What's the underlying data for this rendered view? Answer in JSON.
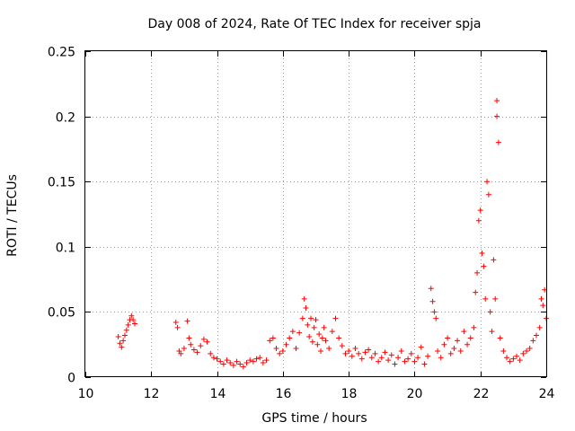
{
  "chart_data": {
    "type": "scatter",
    "title": "Day 008 of 2024, Rate Of TEC Index for receiver spja",
    "xlabel": "GPS time / hours",
    "ylabel": "ROTI / TECUs",
    "xlim": [
      10,
      24
    ],
    "ylim": [
      0,
      0.25
    ],
    "grid": true,
    "marker": "+",
    "color": "#ff0000",
    "x_ticks": [
      {
        "value": 10,
        "label": "10"
      },
      {
        "value": 12,
        "label": "12"
      },
      {
        "value": 14,
        "label": "14"
      },
      {
        "value": 16,
        "label": "16"
      },
      {
        "value": 18,
        "label": "18"
      },
      {
        "value": 20,
        "label": "20"
      },
      {
        "value": 22,
        "label": "22"
      },
      {
        "value": 24,
        "label": "24"
      }
    ],
    "y_ticks": [
      {
        "value": 0,
        "label": "0"
      },
      {
        "value": 0.05,
        "label": "0.05"
      },
      {
        "value": 0.1,
        "label": "0.1"
      },
      {
        "value": 0.15,
        "label": "0.15"
      },
      {
        "value": 0.2,
        "label": "0.2"
      },
      {
        "value": 0.25,
        "label": "0.25"
      }
    ],
    "series": [
      {
        "name": "ROTI",
        "points": [
          [
            11.0,
            0.031
          ],
          [
            11.05,
            0.026
          ],
          [
            11.1,
            0.023
          ],
          [
            11.15,
            0.028
          ],
          [
            11.2,
            0.032
          ],
          [
            11.25,
            0.036
          ],
          [
            11.3,
            0.04
          ],
          [
            11.35,
            0.044
          ],
          [
            11.4,
            0.047
          ],
          [
            11.45,
            0.044
          ],
          [
            11.5,
            0.041
          ],
          [
            12.75,
            0.042
          ],
          [
            12.8,
            0.038
          ],
          [
            12.85,
            0.02
          ],
          [
            12.9,
            0.018
          ],
          [
            13.0,
            0.022
          ],
          [
            13.1,
            0.043
          ],
          [
            13.15,
            0.03
          ],
          [
            13.2,
            0.025
          ],
          [
            13.3,
            0.021
          ],
          [
            13.4,
            0.019
          ],
          [
            13.5,
            0.024
          ],
          [
            13.6,
            0.029
          ],
          [
            13.7,
            0.027
          ],
          [
            13.8,
            0.018
          ],
          [
            13.9,
            0.015
          ],
          [
            14.0,
            0.014
          ],
          [
            14.1,
            0.012
          ],
          [
            14.2,
            0.01
          ],
          [
            14.3,
            0.013
          ],
          [
            14.4,
            0.011
          ],
          [
            14.5,
            0.009
          ],
          [
            14.6,
            0.012
          ],
          [
            14.7,
            0.01
          ],
          [
            14.8,
            0.008
          ],
          [
            14.9,
            0.011
          ],
          [
            15.0,
            0.013
          ],
          [
            15.1,
            0.012
          ],
          [
            15.2,
            0.014
          ],
          [
            15.3,
            0.015
          ],
          [
            15.4,
            0.011
          ],
          [
            15.5,
            0.013
          ],
          [
            15.6,
            0.028
          ],
          [
            15.7,
            0.03
          ],
          [
            15.8,
            0.022
          ],
          [
            15.9,
            0.018
          ],
          [
            16.0,
            0.02
          ],
          [
            16.1,
            0.025
          ],
          [
            16.2,
            0.03
          ],
          [
            16.3,
            0.035
          ],
          [
            16.4,
            0.022
          ],
          [
            16.5,
            0.034
          ],
          [
            16.6,
            0.045
          ],
          [
            16.65,
            0.06
          ],
          [
            16.7,
            0.053
          ],
          [
            16.75,
            0.04
          ],
          [
            16.8,
            0.031
          ],
          [
            16.85,
            0.045
          ],
          [
            16.9,
            0.027
          ],
          [
            16.95,
            0.038
          ],
          [
            17.0,
            0.044
          ],
          [
            17.05,
            0.025
          ],
          [
            17.1,
            0.033
          ],
          [
            17.15,
            0.02
          ],
          [
            17.2,
            0.03
          ],
          [
            17.25,
            0.038
          ],
          [
            17.3,
            0.028
          ],
          [
            17.4,
            0.022
          ],
          [
            17.5,
            0.035
          ],
          [
            17.6,
            0.045
          ],
          [
            17.7,
            0.03
          ],
          [
            17.8,
            0.024
          ],
          [
            17.9,
            0.018
          ],
          [
            18.0,
            0.02
          ],
          [
            18.1,
            0.016
          ],
          [
            18.2,
            0.022
          ],
          [
            18.3,
            0.018
          ],
          [
            18.4,
            0.014
          ],
          [
            18.5,
            0.019
          ],
          [
            18.6,
            0.021
          ],
          [
            18.7,
            0.015
          ],
          [
            18.8,
            0.018
          ],
          [
            18.9,
            0.012
          ],
          [
            19.0,
            0.015
          ],
          [
            19.1,
            0.019
          ],
          [
            19.2,
            0.013
          ],
          [
            19.3,
            0.017
          ],
          [
            19.4,
            0.01
          ],
          [
            19.5,
            0.015
          ],
          [
            19.6,
            0.02
          ],
          [
            19.7,
            0.012
          ],
          [
            19.8,
            0.014
          ],
          [
            19.9,
            0.018
          ],
          [
            20.0,
            0.012
          ],
          [
            20.1,
            0.015
          ],
          [
            20.2,
            0.023
          ],
          [
            20.3,
            0.01
          ],
          [
            20.4,
            0.016
          ],
          [
            20.5,
            0.068
          ],
          [
            20.55,
            0.058
          ],
          [
            20.6,
            0.05
          ],
          [
            20.65,
            0.045
          ],
          [
            20.7,
            0.02
          ],
          [
            20.8,
            0.015
          ],
          [
            20.9,
            0.025
          ],
          [
            21.0,
            0.03
          ],
          [
            21.1,
            0.018
          ],
          [
            21.2,
            0.022
          ],
          [
            21.3,
            0.028
          ],
          [
            21.4,
            0.02
          ],
          [
            21.5,
            0.035
          ],
          [
            21.6,
            0.025
          ],
          [
            21.7,
            0.03
          ],
          [
            21.8,
            0.038
          ],
          [
            21.85,
            0.065
          ],
          [
            21.9,
            0.08
          ],
          [
            21.95,
            0.12
          ],
          [
            22.0,
            0.128
          ],
          [
            22.05,
            0.095
          ],
          [
            22.1,
            0.085
          ],
          [
            22.15,
            0.06
          ],
          [
            22.2,
            0.15
          ],
          [
            22.25,
            0.14
          ],
          [
            22.3,
            0.05
          ],
          [
            22.35,
            0.035
          ],
          [
            22.4,
            0.09
          ],
          [
            22.45,
            0.06
          ],
          [
            22.5,
            0.2
          ],
          [
            22.5,
            0.212
          ],
          [
            22.55,
            0.18
          ],
          [
            22.6,
            0.03
          ],
          [
            22.7,
            0.02
          ],
          [
            22.8,
            0.015
          ],
          [
            22.9,
            0.012
          ],
          [
            23.0,
            0.014
          ],
          [
            23.1,
            0.016
          ],
          [
            23.2,
            0.013
          ],
          [
            23.3,
            0.018
          ],
          [
            23.4,
            0.02
          ],
          [
            23.5,
            0.022
          ],
          [
            23.6,
            0.028
          ],
          [
            23.7,
            0.032
          ],
          [
            23.8,
            0.038
          ],
          [
            23.85,
            0.06
          ],
          [
            23.9,
            0.055
          ],
          [
            23.95,
            0.067
          ],
          [
            24.0,
            0.045
          ]
        ]
      }
    ]
  }
}
